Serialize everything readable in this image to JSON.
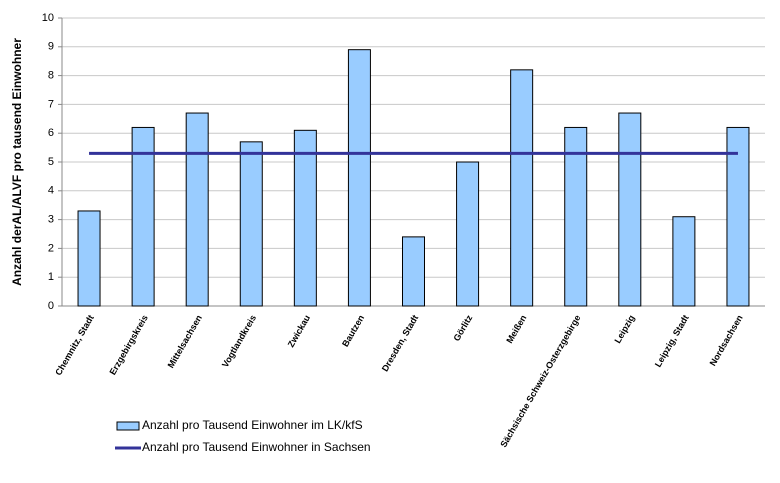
{
  "chart_data": {
    "type": "bar",
    "y_label": "Anzahl derAL/ALVF pro tausend Einwohner",
    "categories": [
      "Chemnitz, Stadt",
      "Erzgebirgskreis",
      "Mittelsachsen",
      "Vogtlandkreis",
      "Zwickau",
      "Bautzen",
      "Dresden, Stadt",
      "Görlitz",
      "Meißen",
      "Sächsische Schweiz-Osterzgebirge",
      "Leipzig",
      "Leipzig, Stadt",
      "Nordsachsen"
    ],
    "series": [
      {
        "name": "Anzahl pro Tausend Einwohner im LK/kfS",
        "type": "bar",
        "color": "#99ccff",
        "values": [
          3.3,
          6.2,
          6.7,
          5.7,
          6.1,
          8.9,
          2.4,
          5.0,
          8.2,
          6.2,
          6.7,
          3.1,
          6.2
        ]
      },
      {
        "name": "Anzahl pro Tausend Einwohner in Sachsen",
        "type": "line",
        "color": "#333399",
        "values": [
          5.3,
          5.3,
          5.3,
          5.3,
          5.3,
          5.3,
          5.3,
          5.3,
          5.3,
          5.3,
          5.3,
          5.3,
          5.3
        ]
      }
    ],
    "ylim": [
      0,
      10
    ],
    "yticks": [
      0,
      1,
      2,
      3,
      4,
      5,
      6,
      7,
      8,
      9,
      10
    ],
    "grid": true,
    "legend": "bottom-left"
  }
}
